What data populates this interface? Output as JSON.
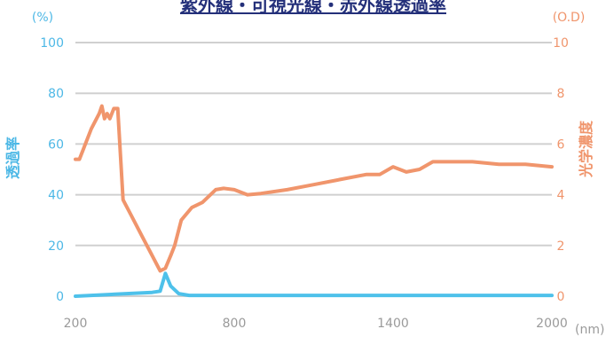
{
  "chart_data": {
    "type": "line",
    "title": "紫外線・可視光線・赤外線透過率",
    "x_unit": "(nm)",
    "xlim": [
      200,
      2000
    ],
    "x_ticks": [
      "200",
      "800",
      "1400",
      "2000"
    ],
    "y_left": {
      "label": "透過率",
      "unit": "(%)",
      "lim": [
        0,
        100
      ],
      "ticks": [
        "0",
        "20",
        "40",
        "60",
        "80",
        "100"
      ]
    },
    "y_right": {
      "label": "光学濃度",
      "unit": "(O.D)",
      "lim": [
        0,
        10
      ],
      "ticks": [
        "0",
        "2",
        "4",
        "6",
        "8",
        "10"
      ]
    },
    "grid": true,
    "series": [
      {
        "axis": "left",
        "color": "#4ec1ea",
        "x": [
          200,
          490,
          520,
          540,
          560,
          590,
          630,
          800,
          1400,
          2000
        ],
        "y": [
          0,
          1.5,
          2,
          9,
          4,
          1,
          0.3,
          0.3,
          0.3,
          0.3
        ]
      },
      {
        "axis": "right",
        "color": "#f0956c",
        "x": [
          200,
          215,
          230,
          260,
          290,
          300,
          310,
          320,
          330,
          345,
          360,
          380,
          410,
          450,
          490,
          520,
          540,
          560,
          575,
          600,
          640,
          680,
          730,
          760,
          800,
          850,
          900,
          1000,
          1100,
          1200,
          1300,
          1350,
          1400,
          1450,
          1500,
          1550,
          1600,
          1700,
          1800,
          1900,
          2000
        ],
        "y": [
          5.4,
          5.4,
          5.8,
          6.6,
          7.2,
          7.5,
          7.0,
          7.2,
          7.0,
          7.4,
          7.4,
          3.8,
          3.2,
          2.4,
          1.6,
          1.0,
          1.1,
          1.6,
          2.0,
          3.0,
          3.5,
          3.7,
          4.2,
          4.25,
          4.2,
          4.0,
          4.05,
          4.2,
          4.4,
          4.6,
          4.8,
          4.8,
          5.1,
          4.9,
          5.0,
          5.3,
          5.3,
          5.3,
          5.2,
          5.2,
          5.1
        ]
      }
    ]
  }
}
